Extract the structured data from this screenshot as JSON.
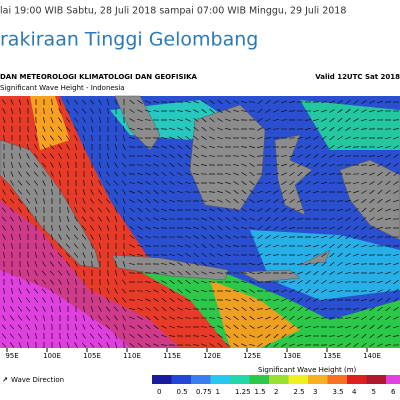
{
  "header": {
    "validity": "lai 19:00 WIB  Sabtu, 28 Juli 2018 sampai 07:00 WIB  Minggu, 29 Juli 2018",
    "title": "rakiraan Tinggi Gelombang"
  },
  "map": {
    "agency": "DAN METEOROLOGI KLIMATOLOGI DAN GEOFISIKA",
    "subtitle": "Significant Wave Height - Indonesia",
    "valid": "Valid 12UTC Sat 2018",
    "longitudes": [
      "95E",
      "100E",
      "105E",
      "110E",
      "115E",
      "120E",
      "125E",
      "130E",
      "135E",
      "140E"
    ]
  },
  "legend": {
    "direction": "Wave Direction",
    "scale_title": "Significant Wave Height (m)",
    "labels": [
      "0",
      "0.5",
      "0.75",
      "1",
      "1.25",
      "1.5",
      "2",
      "2.5",
      "3",
      "3.5",
      "4",
      "5",
      "6"
    ],
    "colors": [
      "#1a1aa0",
      "#2346d8",
      "#3b7cf0",
      "#27c8f0",
      "#23d8a8",
      "#2cc84a",
      "#9be030",
      "#f0f020",
      "#f8b020",
      "#f87020",
      "#e02020",
      "#b01830",
      "#e040e0"
    ]
  }
}
